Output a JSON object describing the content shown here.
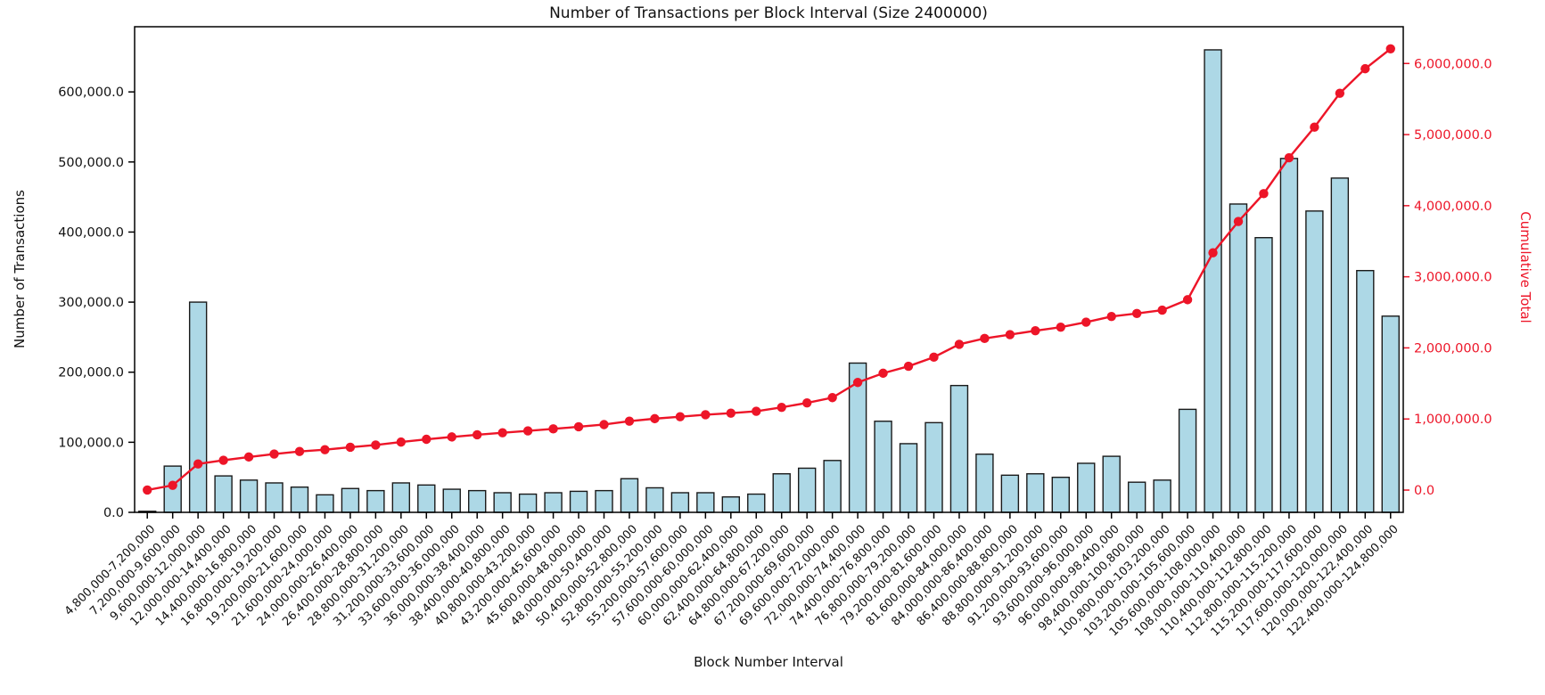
{
  "chart_data": {
    "type": "bar",
    "title": "Number of Transactions per Block Interval (Size 2400000)",
    "xlabel": "Block Number Interval",
    "ylabel_left": "Number of Transactions",
    "ylabel_right": "Cumulative Total",
    "legend": "none",
    "grid": false,
    "x_tick_rotation": 45,
    "categories": [
      "4,800,000-7,200,000",
      "7,200,000-9,600,000",
      "9,600,000-12,000,000",
      "12,000,000-14,400,000",
      "14,400,000-16,800,000",
      "16,800,000-19,200,000",
      "19,200,000-21,600,000",
      "21,600,000-24,000,000",
      "24,000,000-26,400,000",
      "26,400,000-28,800,000",
      "28,800,000-31,200,000",
      "31,200,000-33,600,000",
      "33,600,000-36,000,000",
      "36,000,000-38,400,000",
      "38,400,000-40,800,000",
      "40,800,000-43,200,000",
      "43,200,000-45,600,000",
      "45,600,000-48,000,000",
      "48,000,000-50,400,000",
      "50,400,000-52,800,000",
      "52,800,000-55,200,000",
      "55,200,000-57,600,000",
      "57,600,000-60,000,000",
      "60,000,000-62,400,000",
      "62,400,000-64,800,000",
      "64,800,000-67,200,000",
      "67,200,000-69,600,000",
      "69,600,000-72,000,000",
      "72,000,000-74,400,000",
      "74,400,000-76,800,000",
      "76,800,000-79,200,000",
      "79,200,000-81,600,000",
      "81,600,000-84,000,000",
      "84,000,000-86,400,000",
      "86,400,000-88,800,000",
      "88,800,000-91,200,000",
      "91,200,000-93,600,000",
      "93,600,000-96,000,000",
      "96,000,000-98,400,000",
      "98,400,000-100,800,000",
      "100,800,000-103,200,000",
      "103,200,000-105,600,000",
      "105,600,000-108,000,000",
      "108,000,000-110,400,000",
      "110,400,000-112,800,000",
      "112,800,000-115,200,000",
      "115,200,000-117,600,000",
      "117,600,000-120,000,000",
      "120,000,000-122,400,000",
      "122,400,000-124,800,000"
    ],
    "series": [
      {
        "name": "Number of Transactions",
        "type": "bar",
        "axis": "left",
        "values": [
          1500,
          66000,
          300000,
          52000,
          46000,
          42000,
          36000,
          25000,
          34000,
          31000,
          42000,
          39000,
          33000,
          31000,
          28000,
          26000,
          28000,
          30000,
          31000,
          48000,
          35000,
          28000,
          28000,
          22000,
          26000,
          55000,
          63000,
          74000,
          213000,
          130000,
          98000,
          128000,
          181000,
          83000,
          53000,
          55000,
          50000,
          70000,
          80000,
          43000,
          46000,
          147000,
          660000,
          440000,
          392000,
          505000,
          430000,
          477000,
          345000,
          280000
        ]
      },
      {
        "name": "Cumulative Total",
        "type": "line",
        "axis": "right",
        "values": [
          1500,
          67500,
          367500,
          419500,
          465500,
          507500,
          543500,
          568500,
          602500,
          633500,
          675500,
          714500,
          747500,
          778500,
          806500,
          832500,
          860500,
          890500,
          921500,
          969500,
          1004500,
          1032500,
          1060500,
          1082500,
          1108500,
          1163500,
          1226500,
          1300500,
          1513500,
          1643500,
          1741500,
          1869500,
          2050500,
          2133500,
          2186500,
          2241500,
          2291500,
          2361500,
          2441500,
          2484500,
          2530500,
          2677500,
          3337500,
          3777500,
          4169500,
          4674500,
          5104500,
          5581500,
          5926500,
          6206500
        ]
      }
    ],
    "left_axis": {
      "range": [
        0,
        693000
      ],
      "ticks": [
        0,
        100000,
        200000,
        300000,
        400000,
        500000,
        600000
      ],
      "tick_labels": [
        "0.0",
        "100,000.0",
        "200,000.0",
        "300,000.0",
        "400,000.0",
        "500,000.0",
        "600,000.0"
      ]
    },
    "right_axis": {
      "range": [
        -313000,
        6517000
      ],
      "ticks": [
        0,
        1000000,
        2000000,
        3000000,
        4000000,
        5000000,
        6000000
      ],
      "tick_labels": [
        "0.0",
        "1,000,000.0",
        "2,000,000.0",
        "3,000,000.0",
        "4,000,000.0",
        "5,000,000.0",
        "6,000,000.0"
      ]
    },
    "colors": {
      "bar_fill": "#ADD8E6",
      "bar_edge": "#1a1a1a",
      "line": "#ED1528",
      "right_axis_text": "#ED1528",
      "axis_text": "#111111",
      "spine": "#000000",
      "background": "#ffffff"
    }
  }
}
